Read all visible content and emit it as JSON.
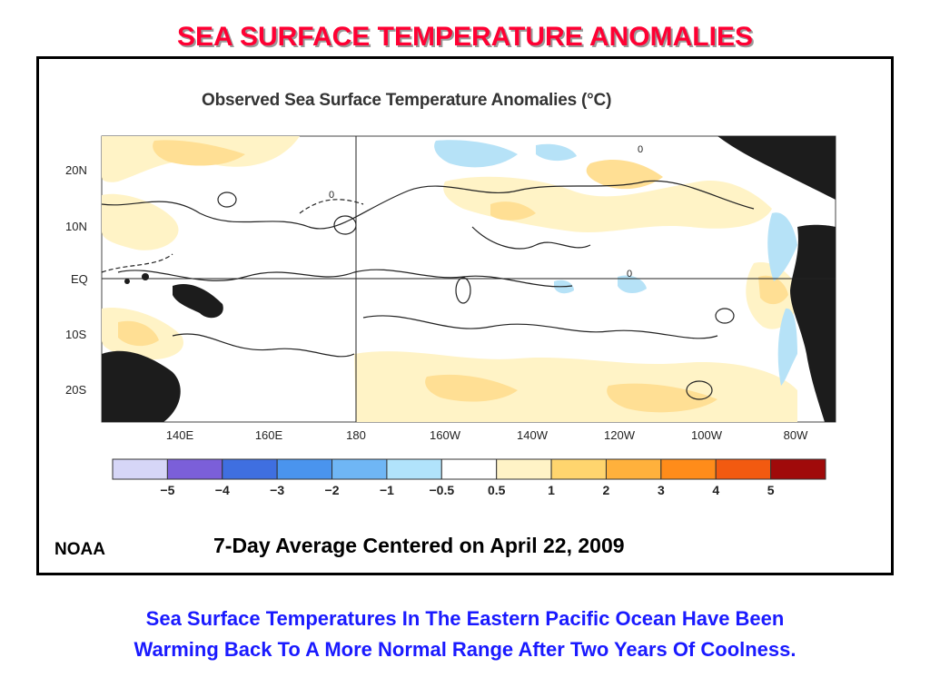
{
  "slide_title": "SEA SURFACE TEMPERATURE ANOMALIES",
  "map": {
    "title": "Observed Sea Surface Temperature Anomalies (°C)",
    "latitude_labels": [
      "20N",
      "10N",
      "EQ",
      "10S",
      "20S"
    ],
    "longitude_labels": [
      "140E",
      "160E",
      "180",
      "160W",
      "140W",
      "120W",
      "100W",
      "80W"
    ],
    "contour_label": "0",
    "colorbar": {
      "labels": [
        "−5",
        "−4",
        "−3",
        "−2",
        "−1",
        "−0.5",
        "0.5",
        "1",
        "2",
        "3",
        "4",
        "5"
      ],
      "colors": [
        "#d6d6f7",
        "#7b5fd9",
        "#3f6fe0",
        "#4a94ee",
        "#6fb6f5",
        "#b1e3fb",
        "#ffffff",
        "#fff3c6",
        "#ffd56e",
        "#ffb13c",
        "#ff8c1a",
        "#f25a10",
        "#a00a0a"
      ]
    },
    "colors": {
      "land": "#1c1c1c",
      "warm_light": "#fff3c6",
      "warm": "#ffdf94",
      "cool": "#b6e2f7",
      "cool_mid": "#84c7f0"
    }
  },
  "caption": "7-Day Average Centered on April 22, 2009",
  "source": "NOAA",
  "footer": {
    "line1": "Sea Surface Temperatures In The Eastern Pacific Ocean Have Been",
    "line2": "Warming Back To A More Normal Range After Two Years Of Coolness."
  }
}
